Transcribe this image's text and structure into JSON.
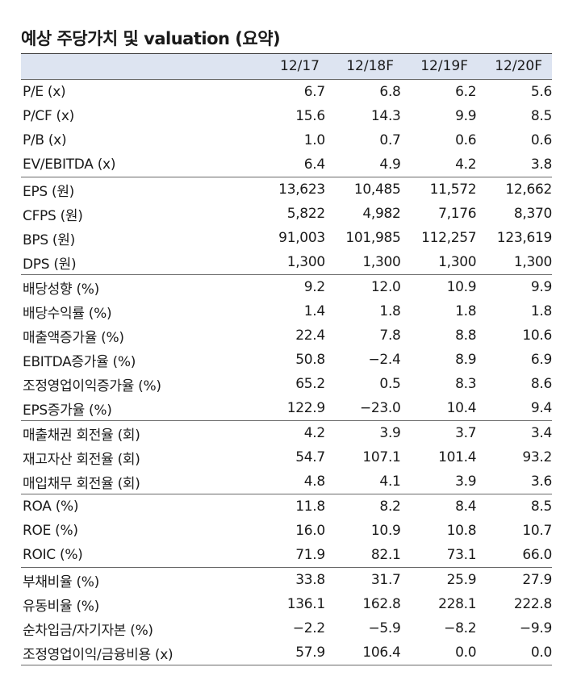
{
  "title": "예상 주당가치 및 valuation (요약)",
  "columns": [
    "12/17",
    "12/18F",
    "12/19F",
    "12/20F"
  ],
  "groups": [
    {
      "rows": [
        {
          "label": "P/E (x)",
          "values": [
            "6.7",
            "6.8",
            "6.2",
            "5.6"
          ]
        },
        {
          "label": "P/CF (x)",
          "values": [
            "15.6",
            "14.3",
            "9.9",
            "8.5"
          ]
        },
        {
          "label": "P/B (x)",
          "values": [
            "1.0",
            "0.7",
            "0.6",
            "0.6"
          ]
        },
        {
          "label": "EV/EBITDA (x)",
          "values": [
            "6.4",
            "4.9",
            "4.2",
            "3.8"
          ]
        }
      ]
    },
    {
      "rows": [
        {
          "label": "EPS (원)",
          "values": [
            "13,623",
            "10,485",
            "11,572",
            "12,662"
          ]
        },
        {
          "label": "CFPS (원)",
          "values": [
            "5,822",
            "4,982",
            "7,176",
            "8,370"
          ]
        },
        {
          "label": "BPS (원)",
          "values": [
            "91,003",
            "101,985",
            "112,257",
            "123,619"
          ]
        },
        {
          "label": "DPS (원)",
          "values": [
            "1,300",
            "1,300",
            "1,300",
            "1,300"
          ]
        }
      ]
    },
    {
      "rows": [
        {
          "label": "배당성향 (%)",
          "values": [
            "9.2",
            "12.0",
            "10.9",
            "9.9"
          ]
        },
        {
          "label": "배당수익률 (%)",
          "values": [
            "1.4",
            "1.8",
            "1.8",
            "1.8"
          ]
        },
        {
          "label": "매출액증가율 (%)",
          "values": [
            "22.4",
            "7.8",
            "8.8",
            "10.6"
          ]
        },
        {
          "label": "EBITDA증가율 (%)",
          "values": [
            "50.8",
            "−2.4",
            "8.9",
            "6.9"
          ]
        },
        {
          "label": "조정영업이익증가율 (%)",
          "values": [
            "65.2",
            "0.5",
            "8.3",
            "8.6"
          ]
        },
        {
          "label": "EPS증가율 (%)",
          "values": [
            "122.9",
            "−23.0",
            "10.4",
            "9.4"
          ]
        }
      ]
    },
    {
      "rows": [
        {
          "label": "매출채권 회전율 (회)",
          "values": [
            "4.2",
            "3.9",
            "3.7",
            "3.4"
          ]
        },
        {
          "label": "재고자산 회전율 (회)",
          "values": [
            "54.7",
            "107.1",
            "101.4",
            "93.2"
          ]
        },
        {
          "label": "매입채무 회전율 (회)",
          "values": [
            "4.8",
            "4.1",
            "3.9",
            "3.6"
          ]
        }
      ]
    },
    {
      "rows": [
        {
          "label": "ROA (%)",
          "values": [
            "11.8",
            "8.2",
            "8.4",
            "8.5"
          ]
        },
        {
          "label": "ROE (%)",
          "values": [
            "16.0",
            "10.9",
            "10.8",
            "10.7"
          ]
        },
        {
          "label": "ROIC (%)",
          "values": [
            "71.9",
            "82.1",
            "73.1",
            "66.0"
          ]
        }
      ]
    },
    {
      "rows": [
        {
          "label": "부채비율 (%)",
          "values": [
            "33.8",
            "31.7",
            "25.9",
            "27.9"
          ]
        },
        {
          "label": "유동비율 (%)",
          "values": [
            "136.1",
            "162.8",
            "228.1",
            "222.8"
          ]
        },
        {
          "label": "순차입금/자기자본 (%)",
          "values": [
            "−2.2",
            "−5.9",
            "−8.2",
            "−9.9"
          ]
        },
        {
          "label": "조정영업이익/금융비용 (x)",
          "values": [
            "57.9",
            "106.4",
            "0.0",
            "0.0"
          ]
        }
      ]
    }
  ]
}
